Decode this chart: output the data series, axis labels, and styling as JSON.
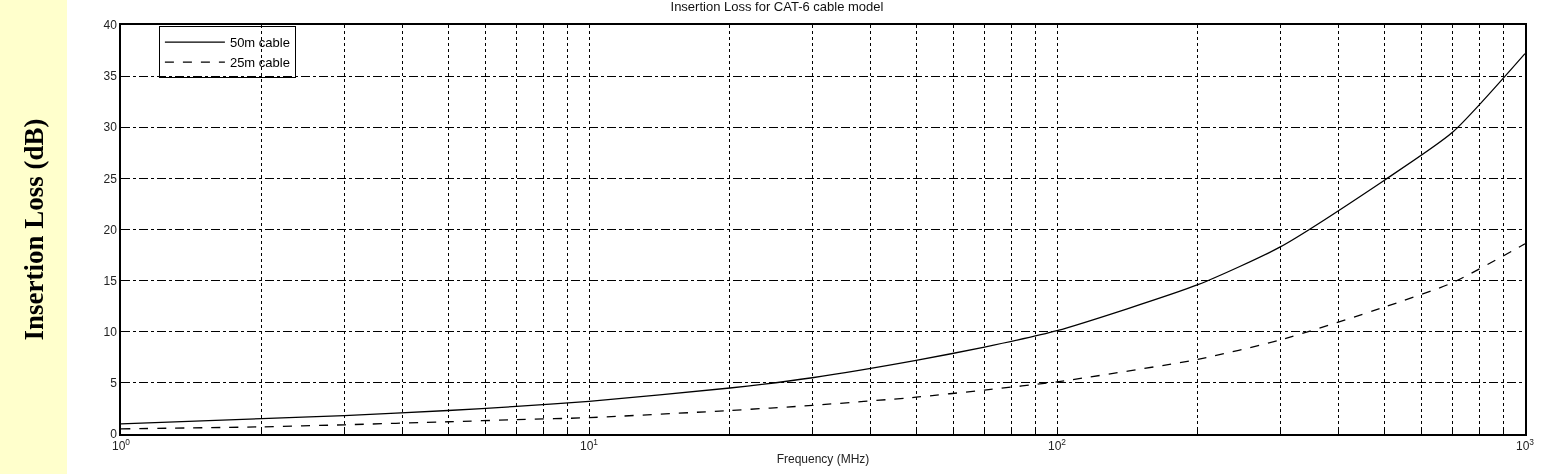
{
  "chart_data": {
    "type": "line",
    "title": "Insertion Loss for CAT-6 cable model",
    "xlabel": "Frequency (MHz)",
    "ylabel": "Insertion Loss (dB)",
    "x": [
      1,
      2,
      3,
      5,
      7,
      10,
      20,
      30,
      50,
      70,
      100,
      200,
      300,
      500,
      700,
      1000
    ],
    "series": [
      {
        "name": "50m cable",
        "color": "#000000",
        "line_style": "solid",
        "values": [
          1.0,
          1.5,
          1.8,
          2.3,
          2.7,
          3.2,
          4.5,
          5.5,
          7.2,
          8.5,
          10.1,
          14.6,
          18.3,
          24.8,
          29.5,
          37.2
        ]
      },
      {
        "name": "25m cable",
        "color": "#000000",
        "line_style": "dashed",
        "values": [
          0.5,
          0.7,
          0.9,
          1.2,
          1.4,
          1.6,
          2.3,
          2.8,
          3.6,
          4.3,
          5.1,
          7.3,
          9.2,
          12.4,
          14.8,
          18.6
        ]
      }
    ],
    "log": "x",
    "xlim": [
      1,
      1000
    ],
    "xticks": [
      {
        "value": 1,
        "label": "10$^{0}$"
      },
      {
        "value": 2,
        "label": null
      },
      {
        "value": 3,
        "label": null
      },
      {
        "value": 4,
        "label": null
      },
      {
        "value": 5,
        "label": null
      },
      {
        "value": 6,
        "label": null
      },
      {
        "value": 7,
        "label": null
      },
      {
        "value": 8,
        "label": null
      },
      {
        "value": 9,
        "label": null
      },
      {
        "value": 10,
        "label": "10$^{1}$"
      },
      {
        "value": 20,
        "label": null
      },
      {
        "value": 30,
        "label": null
      },
      {
        "value": 40,
        "label": null
      },
      {
        "value": 50,
        "label": null
      },
      {
        "value": 60,
        "label": null
      },
      {
        "value": 70,
        "label": null
      },
      {
        "value": 80,
        "label": null
      },
      {
        "value": 90,
        "label": null
      },
      {
        "value": 100,
        "label": "10$^{2}$"
      },
      {
        "value": 200,
        "label": null
      },
      {
        "value": 300,
        "label": null
      },
      {
        "value": 400,
        "label": null
      },
      {
        "value": 500,
        "label": null
      },
      {
        "value": 600,
        "label": null
      },
      {
        "value": 700,
        "label": null
      },
      {
        "value": 800,
        "label": null
      },
      {
        "value": 900,
        "label": null
      },
      {
        "value": 1000,
        "label": "10$^{3}$"
      }
    ],
    "ylim": [
      0,
      40
    ],
    "yticks": [
      0,
      5,
      10,
      15,
      20,
      25,
      30,
      35,
      40
    ],
    "grid": true,
    "legend": "top left",
    "marker": "none"
  }
}
